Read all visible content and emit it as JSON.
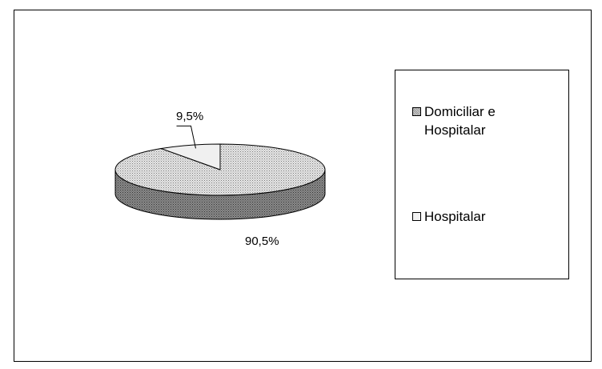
{
  "chart_data": {
    "type": "pie",
    "style": "3d",
    "slices": [
      {
        "name": "Domiciliar e Hospitalar",
        "value": 90.5,
        "label": "90,5%",
        "fill": "dotted-gray",
        "color": "#c8c8c8",
        "side_color": "#6e6e6e"
      },
      {
        "name": "Hospitalar",
        "value": 9.5,
        "label": "9,5%",
        "fill": "light",
        "color": "#f0f0f0",
        "side_color": "#bdbdbd"
      }
    ],
    "legend": {
      "position": "right",
      "items": [
        {
          "label": "Domiciliar e Hospitalar",
          "color": "#b4b4b4"
        },
        {
          "label": "Hospitalar",
          "color": "#f2f2f2"
        }
      ]
    }
  }
}
